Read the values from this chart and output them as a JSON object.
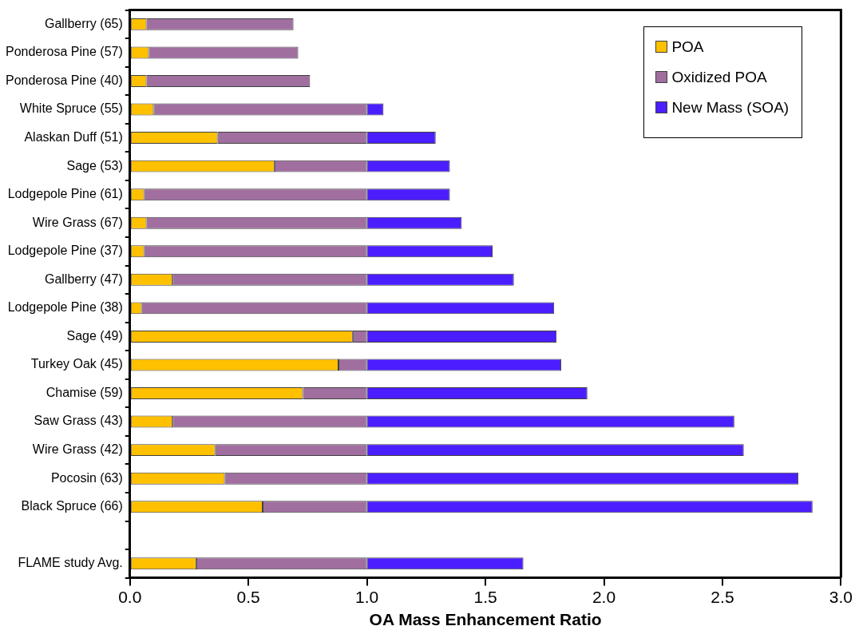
{
  "chart_data": {
    "type": "bar",
    "orientation": "horizontal",
    "stacked": true,
    "xlabel": "OA Mass Enhancement Ratio",
    "categories": [
      "Gallberry (65)",
      "Ponderosa Pine (57)",
      "Ponderosa Pine (40)",
      "White Spruce (55)",
      "Alaskan Duff (51)",
      "Sage (53)",
      "Lodgepole Pine (61)",
      "Wire Grass (67)",
      "Lodgepole Pine (37)",
      "Gallberry (47)",
      "Lodgepole Pine (38)",
      "Sage (49)",
      "Turkey Oak (45)",
      "Chamise (59)",
      "Saw Grass (43)",
      "Wire Grass (42)",
      "Pocosin (63)",
      "Black Spruce (66)",
      null,
      "FLAME study Avg."
    ],
    "series": [
      {
        "name": "POA",
        "color": "#ffc000",
        "values": [
          0.07,
          0.08,
          0.07,
          0.1,
          0.37,
          0.61,
          0.06,
          0.07,
          0.06,
          0.18,
          0.05,
          0.94,
          0.88,
          0.73,
          0.18,
          0.36,
          0.4,
          0.56,
          null,
          0.28
        ]
      },
      {
        "name": "Oxidized POA",
        "color": "#a06fa0",
        "values": [
          0.62,
          0.63,
          0.69,
          0.9,
          0.63,
          0.39,
          0.94,
          0.93,
          0.94,
          0.82,
          0.95,
          0.06,
          0.12,
          0.27,
          0.82,
          0.64,
          0.6,
          0.44,
          null,
          0.72
        ]
      },
      {
        "name": "New Mass (SOA)",
        "color": "#4b1eff",
        "values": [
          0,
          0,
          0,
          0.07,
          0.29,
          0.35,
          0.35,
          0.4,
          0.53,
          0.62,
          0.79,
          0.8,
          0.82,
          0.93,
          1.55,
          1.59,
          1.82,
          1.88,
          null,
          0.66
        ]
      }
    ],
    "xlim": [
      0,
      3
    ],
    "xticks": [
      {
        "value": 0,
        "label": "0.0"
      },
      0.5,
      {
        "value": 1,
        "label": "1.0"
      },
      1.5,
      {
        "value": 2,
        "label": "2.0"
      },
      2.5,
      {
        "value": 3,
        "label": "3.0"
      }
    ],
    "legend": "top right",
    "grid": false
  }
}
